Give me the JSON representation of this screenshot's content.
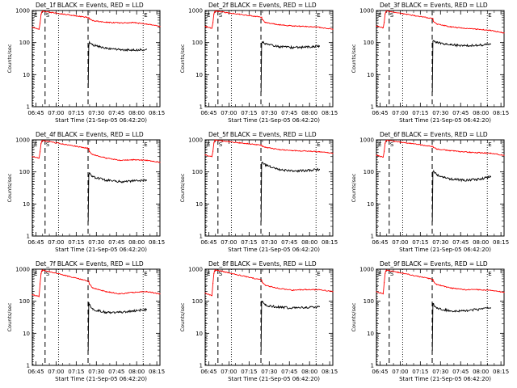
{
  "figure": {
    "xlabel": "Start Time (21-Sep-05 06:42:20)",
    "ylabel": "Counts/sec",
    "x_tick_labels": [
      "06:45",
      "07:00",
      "07:15",
      "07:30",
      "07:45",
      "08:00",
      "08:15"
    ],
    "y_tick_labels": [
      "1",
      "10",
      "100",
      "1000"
    ],
    "x_tick_minutes": [
      2.67,
      17.67,
      32.67,
      47.67,
      62.67,
      77.67,
      92.67
    ],
    "x_range_minutes": [
      0,
      95
    ],
    "y_range_log10": [
      0,
      3
    ],
    "colors": {
      "events": "#000000",
      "lld": "#ff0000",
      "axes": "#000000"
    }
  },
  "chart_data": [
    {
      "type": "line",
      "title": "Det_1f BLACK = Events, RED = LLD",
      "markers": [
        {
          "label": "E",
          "style": "dotted",
          "x": 0.6
        },
        {
          "label": "S",
          "style": "dashed",
          "x": 9.5
        },
        {
          "label": "",
          "style": "dotted",
          "x": 19.5
        },
        {
          "label": "",
          "style": "dashed",
          "x": 41.5
        },
        {
          "label": "E",
          "style": "dotted",
          "x": 82.5
        }
      ],
      "series": [
        {
          "name": "LLD",
          "color": "#ff0000",
          "x": [
            0,
            5,
            5.8,
            6.5,
            6.9,
            7.4,
            42,
            42.3,
            45,
            55,
            65,
            75,
            85,
            95
          ],
          "y": [
            300,
            260,
            400,
            750,
            850,
            950,
            600,
            560,
            480,
            430,
            410,
            420,
            380,
            320
          ]
        },
        {
          "name": "Events",
          "color": "#000000",
          "x": [
            41.6,
            42,
            42.5,
            45,
            55,
            65,
            75,
            85
          ],
          "y": [
            4,
            80,
            100,
            85,
            65,
            60,
            58,
            62
          ]
        }
      ]
    },
    {
      "type": "line",
      "title": "Det_2f BLACK = Events, RED = LLD",
      "markers": [
        {
          "label": "E",
          "style": "dotted",
          "x": 0.6
        },
        {
          "label": "S",
          "style": "dashed",
          "x": 9.5
        },
        {
          "label": "",
          "style": "dotted",
          "x": 19.5
        },
        {
          "label": "",
          "style": "dashed",
          "x": 41.5
        },
        {
          "label": "E",
          "style": "dotted",
          "x": 82.5
        }
      ],
      "series": [
        {
          "name": "LLD",
          "color": "#ff0000",
          "x": [
            0,
            5,
            5.8,
            6.5,
            6.9,
            7.4,
            42,
            42.3,
            45,
            55,
            65,
            75,
            85,
            95
          ],
          "y": [
            320,
            280,
            420,
            780,
            880,
            960,
            620,
            520,
            420,
            360,
            330,
            320,
            300,
            260
          ]
        },
        {
          "name": "Events",
          "color": "#000000",
          "x": [
            41.6,
            42,
            42.5,
            45,
            55,
            65,
            75,
            85
          ],
          "y": [
            3,
            95,
            105,
            90,
            75,
            70,
            72,
            78
          ]
        }
      ]
    },
    {
      "type": "line",
      "title": "Det_3f BLACK = Events, RED = LLD",
      "markers": [
        {
          "label": "E",
          "style": "dotted",
          "x": 0.6
        },
        {
          "label": "S",
          "style": "dashed",
          "x": 9.5
        },
        {
          "label": "",
          "style": "dotted",
          "x": 19.5
        },
        {
          "label": "",
          "style": "dashed",
          "x": 41.5
        },
        {
          "label": "E",
          "style": "dotted",
          "x": 82.5
        }
      ],
      "series": [
        {
          "name": "LLD",
          "color": "#ff0000",
          "x": [
            0,
            5,
            5.8,
            6.5,
            6.9,
            7.4,
            42,
            42.3,
            45,
            55,
            65,
            75,
            85,
            95
          ],
          "y": [
            330,
            290,
            430,
            790,
            880,
            960,
            560,
            460,
            380,
            310,
            280,
            260,
            240,
            200
          ]
        },
        {
          "name": "Events",
          "color": "#000000",
          "x": [
            41.6,
            42,
            42.5,
            45,
            55,
            65,
            75,
            85
          ],
          "y": [
            3,
            110,
            115,
            100,
            85,
            80,
            82,
            90
          ]
        }
      ]
    },
    {
      "type": "line",
      "title": "Det_4f BLACK = Events, RED = LLD",
      "markers": [
        {
          "label": "E",
          "style": "dotted",
          "x": 0.6
        },
        {
          "label": "S",
          "style": "dashed",
          "x": 9.5
        },
        {
          "label": "",
          "style": "dotted",
          "x": 19.5
        },
        {
          "label": "",
          "style": "dashed",
          "x": 41.5
        },
        {
          "label": "E",
          "style": "dotted",
          "x": 82.5
        }
      ],
      "series": [
        {
          "name": "LLD",
          "color": "#ff0000",
          "x": [
            0,
            5,
            5.8,
            6.5,
            6.9,
            7.4,
            42,
            42.3,
            45,
            55,
            65,
            75,
            85,
            95
          ],
          "y": [
            300,
            270,
            420,
            760,
            870,
            950,
            540,
            430,
            350,
            270,
            230,
            240,
            230,
            200
          ]
        },
        {
          "name": "Events",
          "color": "#000000",
          "x": [
            41.6,
            42,
            42.5,
            45,
            55,
            65,
            75,
            85
          ],
          "y": [
            3,
            80,
            90,
            70,
            55,
            50,
            52,
            55
          ]
        }
      ]
    },
    {
      "type": "line",
      "title": "Det_5f BLACK = Events, RED = LLD",
      "markers": [
        {
          "label": "E",
          "style": "dotted",
          "x": 0.6
        },
        {
          "label": "S",
          "style": "dashed",
          "x": 9.5
        },
        {
          "label": "",
          "style": "dotted",
          "x": 19.5
        },
        {
          "label": "",
          "style": "dashed",
          "x": 41.5
        },
        {
          "label": "E",
          "style": "dotted",
          "x": 82.5
        }
      ],
      "series": [
        {
          "name": "LLD",
          "color": "#ff0000",
          "x": [
            0,
            5,
            5.8,
            6.5,
            6.9,
            7.4,
            42,
            42.3,
            45,
            55,
            65,
            75,
            85,
            95
          ],
          "y": [
            340,
            300,
            440,
            800,
            900,
            980,
            680,
            640,
            580,
            500,
            460,
            450,
            420,
            380
          ]
        },
        {
          "name": "Events",
          "color": "#000000",
          "x": [
            41.6,
            42,
            42.5,
            45,
            55,
            65,
            75,
            85
          ],
          "y": [
            3,
            190,
            200,
            160,
            120,
            105,
            110,
            120
          ]
        }
      ]
    },
    {
      "type": "line",
      "title": "Det_6f BLACK = Events, RED = LLD",
      "markers": [
        {
          "label": "E",
          "style": "dotted",
          "x": 0.6
        },
        {
          "label": "S",
          "style": "dashed",
          "x": 9.5
        },
        {
          "label": "",
          "style": "dotted",
          "x": 19.5
        },
        {
          "label": "",
          "style": "dashed",
          "x": 41.5
        },
        {
          "label": "E",
          "style": "dotted",
          "x": 82.5
        }
      ],
      "series": [
        {
          "name": "LLD",
          "color": "#ff0000",
          "x": [
            0,
            5,
            5.8,
            6.5,
            6.9,
            7.4,
            42,
            42.3,
            45,
            55,
            65,
            75,
            85,
            95
          ],
          "y": [
            330,
            290,
            440,
            790,
            890,
            970,
            620,
            580,
            520,
            460,
            420,
            400,
            380,
            330
          ]
        },
        {
          "name": "Events",
          "color": "#000000",
          "x": [
            41.6,
            42,
            42.5,
            45,
            55,
            65,
            75,
            85
          ],
          "y": [
            3,
            100,
            110,
            80,
            60,
            55,
            58,
            70
          ]
        }
      ]
    },
    {
      "type": "line",
      "title": "Det_7f BLACK = Events, RED = LLD",
      "markers": [
        {
          "label": "E",
          "style": "dotted",
          "x": 0.6
        },
        {
          "label": "S",
          "style": "dashed",
          "x": 9.5
        },
        {
          "label": "",
          "style": "dotted",
          "x": 19.5
        },
        {
          "label": "",
          "style": "dashed",
          "x": 41.5
        },
        {
          "label": "E",
          "style": "dotted",
          "x": 82.5
        }
      ],
      "series": [
        {
          "name": "LLD",
          "color": "#ff0000",
          "x": [
            0,
            5,
            5.8,
            6.5,
            6.9,
            7.4,
            42,
            42.3,
            45,
            55,
            65,
            75,
            85,
            95
          ],
          "y": [
            160,
            140,
            350,
            720,
            860,
            950,
            420,
            350,
            260,
            200,
            170,
            190,
            200,
            170
          ]
        },
        {
          "name": "Events",
          "color": "#000000",
          "x": [
            41.6,
            42,
            42.5,
            45,
            55,
            65,
            75,
            85
          ],
          "y": [
            3,
            90,
            80,
            55,
            45,
            45,
            50,
            55
          ]
        }
      ]
    },
    {
      "type": "line",
      "title": "Det_8f BLACK = Events, RED = LLD",
      "markers": [
        {
          "label": "E",
          "style": "dotted",
          "x": 0.6
        },
        {
          "label": "S",
          "style": "dashed",
          "x": 9.5
        },
        {
          "label": "",
          "style": "dotted",
          "x": 19.5
        },
        {
          "label": "",
          "style": "dashed",
          "x": 41.5
        },
        {
          "label": "E",
          "style": "dotted",
          "x": 82.5
        }
      ],
      "series": [
        {
          "name": "LLD",
          "color": "#ff0000",
          "x": [
            0,
            5,
            5.8,
            6.5,
            6.9,
            7.4,
            42,
            42.3,
            45,
            55,
            65,
            75,
            85,
            95
          ],
          "y": [
            180,
            150,
            360,
            730,
            870,
            950,
            460,
            400,
            310,
            250,
            220,
            230,
            230,
            200
          ]
        },
        {
          "name": "Events",
          "color": "#000000",
          "x": [
            41.6,
            42,
            42.5,
            45,
            55,
            65,
            75,
            85
          ],
          "y": [
            3,
            100,
            95,
            75,
            65,
            62,
            64,
            68
          ]
        }
      ]
    },
    {
      "type": "line",
      "title": "Det_9f BLACK = Events, RED = LLD",
      "markers": [
        {
          "label": "E",
          "style": "dotted",
          "x": 0.6
        },
        {
          "label": "S",
          "style": "dashed",
          "x": 9.5
        },
        {
          "label": "",
          "style": "dotted",
          "x": 19.5
        },
        {
          "label": "",
          "style": "dashed",
          "x": 41.5
        },
        {
          "label": "E",
          "style": "dotted",
          "x": 82.5
        }
      ],
      "series": [
        {
          "name": "LLD",
          "color": "#ff0000",
          "x": [
            0,
            5,
            5.8,
            6.5,
            6.9,
            7.4,
            42,
            42.3,
            45,
            55,
            65,
            75,
            85,
            95
          ],
          "y": [
            200,
            170,
            380,
            740,
            870,
            950,
            480,
            420,
            330,
            260,
            230,
            230,
            220,
            190
          ]
        },
        {
          "name": "Events",
          "color": "#000000",
          "x": [
            41.6,
            42,
            42.5,
            45,
            55,
            65,
            75,
            85
          ],
          "y": [
            3,
            85,
            80,
            60,
            50,
            50,
            55,
            62
          ]
        }
      ]
    }
  ]
}
